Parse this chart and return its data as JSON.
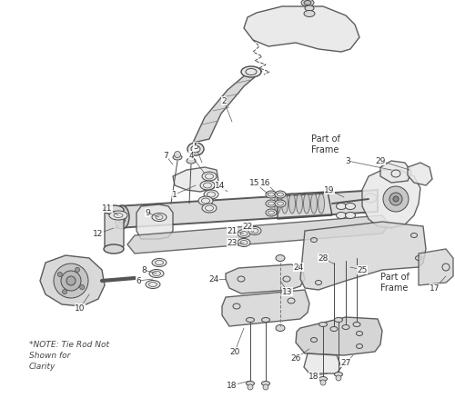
{
  "bg_color": "#ffffff",
  "lc": "#4a4a4a",
  "lc_light": "#7a7a7a",
  "fc_light": "#e8e8e8",
  "fc_mid": "#d8d8d8",
  "text_color": "#333333",
  "figsize": [
    5.0,
    4.39
  ],
  "dpi": 100,
  "note_text": "*NOTE: Tie Rod Not\nShown for\nClarity",
  "pof1_text": "Part of\nFrame",
  "pof2_text": "Part of\nFrame"
}
